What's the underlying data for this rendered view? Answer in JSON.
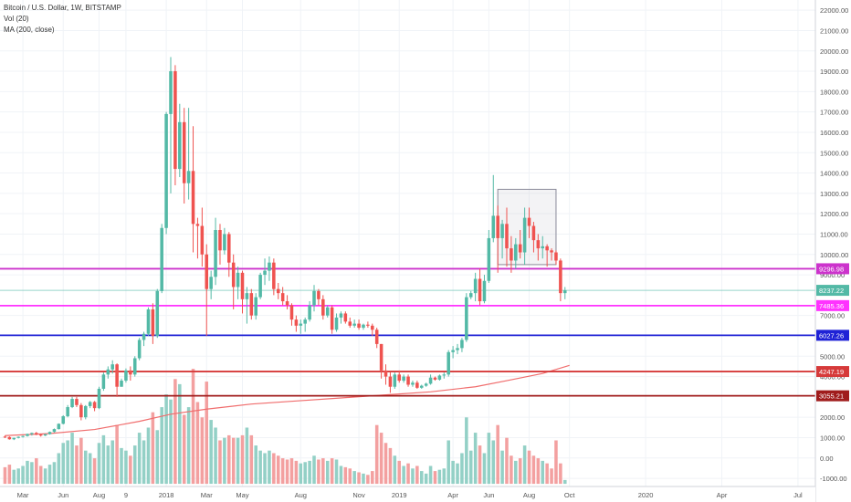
{
  "header": {
    "symbol": "Bitcoin / U.S. Dollar, 1W, BITSTAMP",
    "vol_label": "Vol (20)",
    "ma_label": "MA (200, close)"
  },
  "colors": {
    "up": "#53b9a6",
    "down": "#ef5350",
    "vol_up": "#93d0c6",
    "vol_down": "#f3a0a0",
    "ma": "#f06d6d",
    "magenta_line": "#cc33cc",
    "pink_line": "#ff33ff",
    "blue_line": "#1f22d6",
    "red_line": "#d63a3a",
    "darkred_line": "#a01c1c",
    "current_line": "#7fd6c8"
  },
  "chart_data": {
    "type": "candlestick",
    "title": "Bitcoin / U.S. Dollar, 1W, BITSTAMP",
    "price_axis": {
      "range": [
        -1400,
        22500
      ],
      "ticks": [
        {
          "v": 22000,
          "label": "22000.00"
        },
        {
          "v": 21000,
          "label": "21000.00"
        },
        {
          "v": 20000,
          "label": "20000.00"
        },
        {
          "v": 19000,
          "label": "19000.00"
        },
        {
          "v": 18000,
          "label": "18000.00"
        },
        {
          "v": 17000,
          "label": "17000.00"
        },
        {
          "v": 16000,
          "label": "16000.00"
        },
        {
          "v": 15000,
          "label": "15000.00"
        },
        {
          "v": 14000,
          "label": "14000.00"
        },
        {
          "v": 13000,
          "label": "13000.00"
        },
        {
          "v": 12000,
          "label": "12000.00"
        },
        {
          "v": 11000,
          "label": "11000.00"
        },
        {
          "v": 10000,
          "label": "10000.00"
        },
        {
          "v": 9000,
          "label": "9000.00"
        },
        {
          "v": 7000,
          "label": "7000.00"
        },
        {
          "v": 5000,
          "label": "5000.00"
        },
        {
          "v": 4000,
          "label": "4000.00"
        },
        {
          "v": 2000,
          "label": "2000.00"
        },
        {
          "v": 1000,
          "label": "1000.00"
        },
        {
          "v": 0,
          "label": "0.00"
        },
        {
          "v": -1000,
          "label": "-1000.00"
        }
      ]
    },
    "time_axis": {
      "labels": [
        {
          "i": 4,
          "label": "Mar"
        },
        {
          "i": 13,
          "label": "Jun"
        },
        {
          "i": 21,
          "label": "Aug"
        },
        {
          "i": 27,
          "label": "9"
        },
        {
          "i": 36,
          "label": "2018"
        },
        {
          "i": 45,
          "label": "Mar"
        },
        {
          "i": 53,
          "label": "May"
        },
        {
          "i": 66,
          "label": "Aug"
        },
        {
          "i": 79,
          "label": "Nov"
        },
        {
          "i": 88,
          "label": "2019"
        },
        {
          "i": 100,
          "label": "Apr"
        },
        {
          "i": 108,
          "label": "Jun"
        },
        {
          "i": 117,
          "label": "Aug"
        },
        {
          "i": 126,
          "label": "Oct"
        },
        {
          "i": 143,
          "label": "2020"
        },
        {
          "i": 160,
          "label": "Apr"
        },
        {
          "i": 177,
          "label": "Jul"
        }
      ],
      "total_slots": 182
    },
    "levels": [
      {
        "price": 9296.98,
        "label": "9296.98",
        "color": "#cc33cc"
      },
      {
        "price": 8237.22,
        "label": "8237.22",
        "color": "#53b9a6",
        "current": true
      },
      {
        "price": 7485.36,
        "label": "7485.36",
        "color": "#ff33ff"
      },
      {
        "price": 6027.26,
        "label": "6027.26",
        "color": "#1f22d6"
      },
      {
        "price": 4247.19,
        "label": "4247.19",
        "color": "#d63a3a"
      },
      {
        "price": 3055.21,
        "label": "3055.21",
        "color": "#a01c1c"
      }
    ],
    "candles": [
      [
        1050,
        1100,
        980,
        1030,
        650
      ],
      [
        1030,
        1060,
        900,
        920,
        750
      ],
      [
        920,
        1000,
        880,
        990,
        550
      ],
      [
        990,
        1060,
        960,
        1040,
        600
      ],
      [
        1040,
        1100,
        1000,
        1080,
        700
      ],
      [
        1080,
        1200,
        1050,
        1180,
        900
      ],
      [
        1180,
        1250,
        1100,
        1230,
        850
      ],
      [
        1230,
        1280,
        1120,
        1150,
        1000
      ],
      [
        1150,
        1200,
        1050,
        1100,
        700
      ],
      [
        1100,
        1180,
        1080,
        1170,
        600
      ],
      [
        1170,
        1300,
        1150,
        1280,
        750
      ],
      [
        1280,
        1450,
        1250,
        1420,
        850
      ],
      [
        1420,
        1700,
        1400,
        1680,
        1200
      ],
      [
        1680,
        2100,
        1650,
        2050,
        1600
      ],
      [
        2050,
        2600,
        2000,
        2500,
        1700
      ],
      [
        2500,
        3000,
        2450,
        2900,
        2000
      ],
      [
        2900,
        3000,
        2500,
        2600,
        1500
      ],
      [
        2600,
        2700,
        1850,
        2000,
        1800
      ],
      [
        2000,
        2600,
        1900,
        2550,
        1300
      ],
      [
        2550,
        2800,
        2450,
        2750,
        1200
      ],
      [
        2750,
        2800,
        2300,
        2450,
        1000
      ],
      [
        2450,
        3500,
        2400,
        3400,
        1600
      ],
      [
        3400,
        4200,
        3300,
        4100,
        1900
      ],
      [
        4100,
        4500,
        3900,
        4350,
        1500
      ],
      [
        4350,
        4800,
        4150,
        4600,
        1700
      ],
      [
        4600,
        4650,
        3000,
        3500,
        2300
      ],
      [
        3500,
        3900,
        3500,
        3800,
        1400
      ],
      [
        3800,
        4400,
        3700,
        4300,
        1300
      ],
      [
        4300,
        4500,
        3800,
        4100,
        1100
      ],
      [
        4100,
        5000,
        4000,
        4900,
        1500
      ],
      [
        4900,
        5900,
        4800,
        5800,
        2000
      ],
      [
        5800,
        6200,
        5500,
        6100,
        1700
      ],
      [
        6100,
        7400,
        6000,
        7300,
        2200
      ],
      [
        7300,
        7600,
        5600,
        6000,
        2800
      ],
      [
        6000,
        8300,
        5900,
        8200,
        2100
      ],
      [
        8200,
        11500,
        8100,
        11300,
        3000
      ],
      [
        11300,
        17000,
        11000,
        16900,
        3500
      ],
      [
        16900,
        19700,
        13000,
        19000,
        3300
      ],
      [
        19000,
        19300,
        13400,
        14200,
        4100
      ],
      [
        14200,
        17400,
        13800,
        16500,
        3900
      ],
      [
        16500,
        17200,
        12500,
        13500,
        2700
      ],
      [
        13500,
        17200,
        12700,
        14100,
        3000
      ],
      [
        14100,
        16300,
        10100,
        11500,
        4500
      ],
      [
        11500,
        11800,
        9800,
        11400,
        3200
      ],
      [
        11400,
        12300,
        9400,
        10000,
        2600
      ],
      [
        10000,
        10500,
        6000,
        8300,
        4000
      ],
      [
        8300,
        9200,
        7800,
        8900,
        2500
      ],
      [
        8900,
        11800,
        8500,
        11200,
        2200
      ],
      [
        11200,
        11500,
        9500,
        10200,
        1700
      ],
      [
        10200,
        11300,
        10000,
        11000,
        1800
      ],
      [
        11000,
        11100,
        8900,
        9600,
        1900
      ],
      [
        9600,
        10000,
        7300,
        8400,
        1800
      ],
      [
        8400,
        9400,
        7800,
        9100,
        1800
      ],
      [
        9100,
        9200,
        7100,
        7800,
        1900
      ],
      [
        7800,
        8400,
        6600,
        8100,
        2200
      ],
      [
        8100,
        8300,
        6800,
        7000,
        1900
      ],
      [
        7000,
        8100,
        6800,
        7900,
        1500
      ],
      [
        7900,
        9100,
        7800,
        9000,
        1300
      ],
      [
        9000,
        9800,
        8500,
        9200,
        1200
      ],
      [
        9200,
        9900,
        8700,
        9600,
        1300
      ],
      [
        9600,
        9800,
        8000,
        8300,
        1200
      ],
      [
        8300,
        8600,
        7800,
        8100,
        1100
      ],
      [
        8100,
        8400,
        7500,
        7700,
        1000
      ],
      [
        7700,
        8000,
        7300,
        7500,
        950
      ],
      [
        7500,
        7600,
        6500,
        6800,
        1000
      ],
      [
        6800,
        7000,
        6200,
        6500,
        900
      ],
      [
        6500,
        6800,
        6100,
        6600,
        800
      ],
      [
        6600,
        6900,
        6200,
        6800,
        850
      ],
      [
        6800,
        7700,
        6700,
        7500,
        900
      ],
      [
        7500,
        8500,
        7200,
        8200,
        1100
      ],
      [
        8200,
        8300,
        7500,
        7800,
        950
      ],
      [
        7800,
        8000,
        6800,
        7000,
        1000
      ],
      [
        7000,
        7500,
        6900,
        7400,
        900
      ],
      [
        7400,
        7500,
        6100,
        6300,
        1000
      ],
      [
        6300,
        7100,
        6200,
        6900,
        950
      ],
      [
        6900,
        7200,
        6600,
        7100,
        700
      ],
      [
        7100,
        7200,
        6600,
        6700,
        650
      ],
      [
        6700,
        6900,
        6400,
        6500,
        600
      ],
      [
        6500,
        6800,
        6400,
        6600,
        500
      ],
      [
        6600,
        6800,
        6300,
        6400,
        450
      ],
      [
        6400,
        6600,
        6300,
        6550,
        400
      ],
      [
        6550,
        6700,
        6400,
        6500,
        350
      ],
      [
        6500,
        6600,
        6000,
        6300,
        500
      ],
      [
        6300,
        6400,
        5400,
        5600,
        2300
      ],
      [
        5600,
        5600,
        3900,
        4300,
        2000
      ],
      [
        4300,
        4600,
        3600,
        4000,
        1600
      ],
      [
        4000,
        4200,
        3200,
        3500,
        1400
      ],
      [
        3500,
        4200,
        3400,
        4100,
        1100
      ],
      [
        4100,
        4300,
        3700,
        3800,
        900
      ],
      [
        3800,
        4100,
        3700,
        4000,
        700
      ],
      [
        4000,
        4100,
        3500,
        3600,
        800
      ],
      [
        3600,
        3800,
        3500,
        3700,
        600
      ],
      [
        3700,
        3800,
        3400,
        3450,
        700
      ],
      [
        3450,
        3600,
        3400,
        3550,
        500
      ],
      [
        3550,
        3700,
        3500,
        3650,
        400
      ],
      [
        3650,
        4100,
        3600,
        3950,
        700
      ],
      [
        3950,
        4000,
        3800,
        3850,
        500
      ],
      [
        3850,
        4100,
        3800,
        4050,
        550
      ],
      [
        4050,
        4200,
        3900,
        4100,
        600
      ],
      [
        4100,
        5300,
        4000,
        5200,
        1700
      ],
      [
        5200,
        5500,
        4900,
        5300,
        900
      ],
      [
        5300,
        5600,
        5100,
        5400,
        800
      ],
      [
        5400,
        5900,
        5200,
        5800,
        1200
      ],
      [
        5800,
        8100,
        5700,
        7900,
        2600
      ],
      [
        7900,
        8200,
        7800,
        8100,
        1300
      ],
      [
        8100,
        9100,
        7700,
        8800,
        2000
      ],
      [
        8800,
        9300,
        7500,
        7700,
        1500
      ],
      [
        7700,
        9000,
        7600,
        8700,
        1200
      ],
      [
        8700,
        11200,
        8600,
        10800,
        2000
      ],
      [
        10800,
        13900,
        10600,
        11900,
        1700
      ],
      [
        11900,
        12400,
        9100,
        10800,
        2300
      ],
      [
        10800,
        11700,
        9800,
        11500,
        1300
      ],
      [
        11500,
        12300,
        9400,
        10300,
        1800
      ],
      [
        10300,
        10900,
        9100,
        9700,
        1100
      ],
      [
        9700,
        10800,
        9300,
        10500,
        900
      ],
      [
        10500,
        11200,
        9800,
        10100,
        1000
      ],
      [
        10100,
        12300,
        9500,
        11800,
        1500
      ],
      [
        11800,
        12300,
        10800,
        11400,
        1300
      ],
      [
        11400,
        11600,
        10100,
        10700,
        1100
      ],
      [
        10700,
        11000,
        9700,
        10300,
        1000
      ],
      [
        10300,
        10900,
        9800,
        10400,
        900
      ],
      [
        10400,
        10500,
        9400,
        10200,
        800
      ],
      [
        10200,
        10300,
        9700,
        10100,
        600
      ],
      [
        10100,
        10200,
        9500,
        9700,
        1700
      ],
      [
        9700,
        9800,
        7700,
        8100,
        800
      ],
      [
        8100,
        8400,
        7800,
        8237,
        150
      ]
    ],
    "ma200": [
      [
        0,
        1100
      ],
      [
        10,
        1200
      ],
      [
        20,
        1400
      ],
      [
        30,
        1800
      ],
      [
        37,
        2150
      ],
      [
        45,
        2400
      ],
      [
        55,
        2650
      ],
      [
        65,
        2800
      ],
      [
        75,
        2950
      ],
      [
        85,
        3100
      ],
      [
        95,
        3250
      ],
      [
        105,
        3500
      ],
      [
        112,
        3800
      ],
      [
        120,
        4150
      ],
      [
        126,
        4550
      ]
    ],
    "annotation_box": {
      "i_start": 110,
      "i_end": 123,
      "top": 13200,
      "bottom": 9500
    }
  }
}
